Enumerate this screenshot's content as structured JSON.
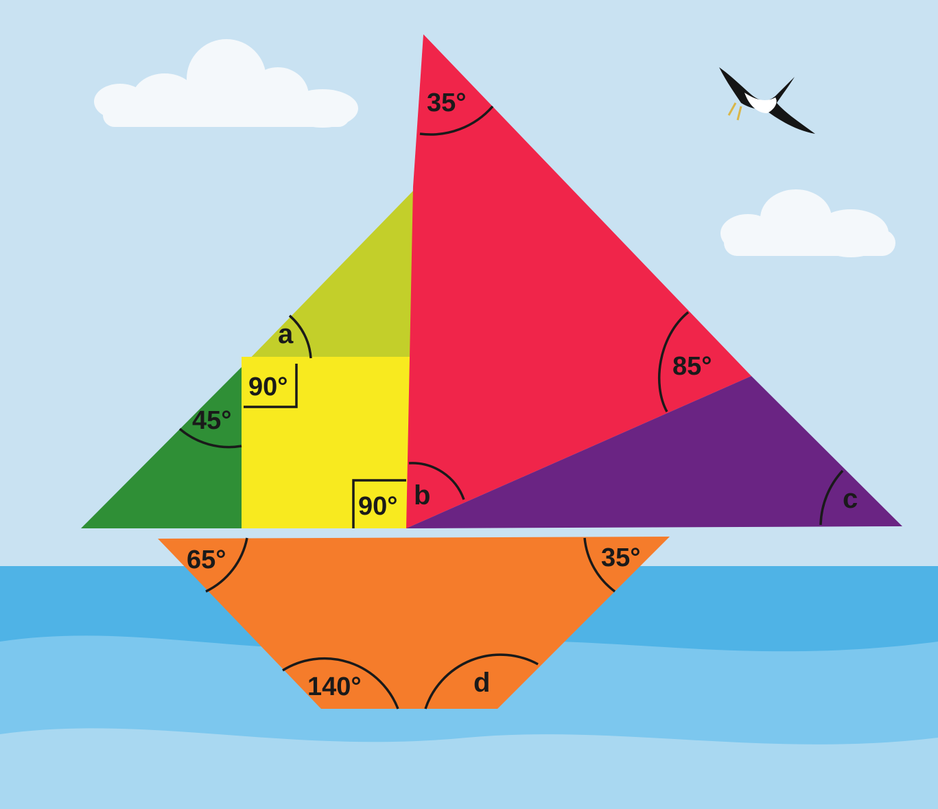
{
  "colors": {
    "sky": "#c9e2f2",
    "sea_top": "#4fb3e6",
    "sea_mid": "#7cc7ee",
    "sea_bottom": "#a9d8f1",
    "green": "#2f8f36",
    "lime": "#c3cf2a",
    "yellow": "#f8ea1f",
    "red": "#f0254a",
    "purple": "#6a2483",
    "orange": "#f57c2b"
  },
  "angles": {
    "red_top": "35°",
    "red_right": "85°",
    "lime_unknown": "a",
    "yellow_top_right_angle": "90°",
    "green_left": "45°",
    "yellow_bottom_right_angle": "90°",
    "red_bottom_unknown": "b",
    "purple_right_unknown": "c",
    "hull_top_left": "65°",
    "hull_top_right": "35°",
    "hull_bottom_left": "140°",
    "hull_bottom_right_unknown": "d"
  }
}
